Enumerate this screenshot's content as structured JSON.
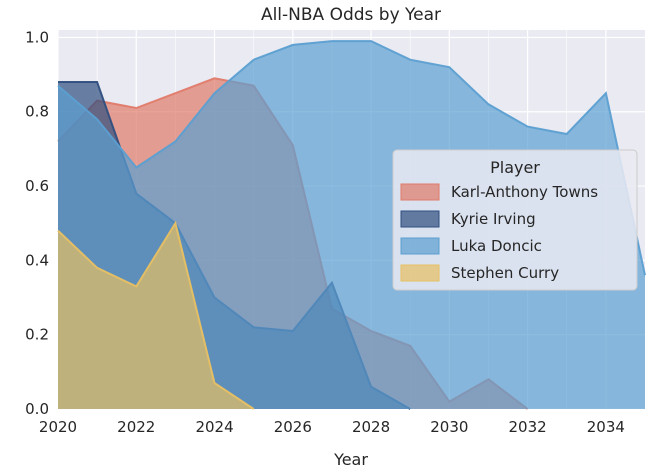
{
  "chart_data": {
    "type": "area",
    "title": "All-NBA Odds by Year",
    "xlabel": "Year",
    "ylabel": "",
    "xlim": [
      2020,
      2035
    ],
    "ylim": [
      0,
      1.02
    ],
    "x_ticks": [
      "2020",
      "2022",
      "2024",
      "2026",
      "2028",
      "2030",
      "2032",
      "2034"
    ],
    "y_ticks": [
      "0.0",
      "0.2",
      "0.4",
      "0.6",
      "0.8",
      "1.0"
    ],
    "grid": true,
    "legend_title": "Player",
    "legend_position": "center-right",
    "series": [
      {
        "name": "Karl-Anthony Towns",
        "color": "#e07b6a",
        "points": [
          [
            2020,
            0.72
          ],
          [
            2021,
            0.83
          ],
          [
            2022,
            0.81
          ],
          [
            2023,
            0.85
          ],
          [
            2024,
            0.89
          ],
          [
            2025,
            0.87
          ],
          [
            2026,
            0.71
          ],
          [
            2027,
            0.27
          ],
          [
            2028,
            0.21
          ],
          [
            2029,
            0.17
          ],
          [
            2030,
            0.02
          ],
          [
            2031,
            0.08
          ],
          [
            2032,
            0.0
          ]
        ]
      },
      {
        "name": "Kyrie Irving",
        "color": "#2f4f7f",
        "points": [
          [
            2020,
            0.88
          ],
          [
            2021,
            0.88
          ],
          [
            2022,
            0.58
          ],
          [
            2023,
            0.5
          ],
          [
            2024,
            0.3
          ],
          [
            2025,
            0.22
          ],
          [
            2026,
            0.21
          ],
          [
            2027,
            0.34
          ],
          [
            2028,
            0.06
          ],
          [
            2029,
            0.0
          ]
        ]
      },
      {
        "name": "Luka Doncic",
        "color": "#5b9fd1",
        "points": [
          [
            2020,
            0.87
          ],
          [
            2021,
            0.78
          ],
          [
            2022,
            0.65
          ],
          [
            2023,
            0.72
          ],
          [
            2024,
            0.85
          ],
          [
            2025,
            0.94
          ],
          [
            2026,
            0.98
          ],
          [
            2027,
            0.99
          ],
          [
            2028,
            0.99
          ],
          [
            2029,
            0.94
          ],
          [
            2030,
            0.92
          ],
          [
            2031,
            0.82
          ],
          [
            2032,
            0.76
          ],
          [
            2033,
            0.74
          ],
          [
            2034,
            0.85
          ],
          [
            2035,
            0.36
          ]
        ]
      },
      {
        "name": "Stephen Curry",
        "color": "#e7c063",
        "points": [
          [
            2020,
            0.48
          ],
          [
            2021,
            0.38
          ],
          [
            2022,
            0.33
          ],
          [
            2023,
            0.5
          ],
          [
            2024,
            0.07
          ],
          [
            2025,
            0.0
          ]
        ]
      }
    ]
  }
}
